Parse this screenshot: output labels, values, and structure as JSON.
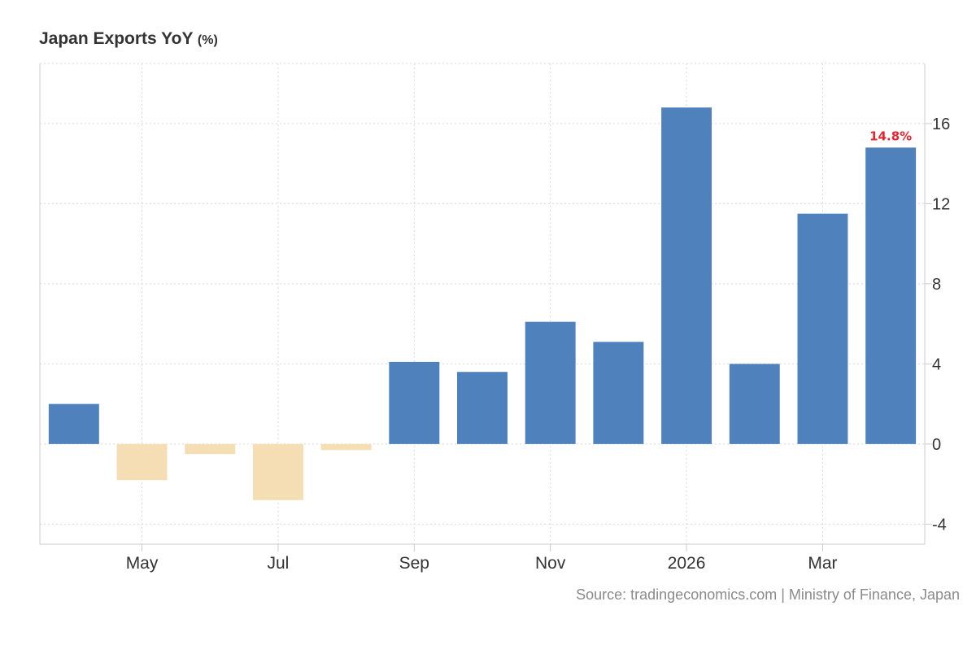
{
  "title": "Japan Exports YoY",
  "unit": "(%)",
  "source": "Source: tradingeconomics.com | Ministry of Finance, Japan",
  "chart_data": {
    "type": "bar",
    "title": "Japan Exports YoY (%)",
    "xlabel": "",
    "ylabel": "",
    "categories": [
      "2025-04",
      "2025-05",
      "2025-06",
      "2025-07",
      "2025-08",
      "2025-09",
      "2025-10",
      "2025-11",
      "2025-12",
      "2026-01",
      "2026-02",
      "2026-03",
      "2026-04"
    ],
    "values": [
      2.0,
      -1.8,
      -0.5,
      -2.8,
      -0.3,
      4.1,
      3.6,
      6.1,
      5.1,
      16.8,
      4.0,
      11.5,
      14.8
    ],
    "ylim": [
      -5,
      19
    ],
    "yticks": [
      -4,
      0,
      4,
      8,
      12,
      16
    ],
    "xtick_labels": [
      {
        "category": "2025-05",
        "label": "May"
      },
      {
        "category": "2025-07",
        "label": "Jul"
      },
      {
        "category": "2025-09",
        "label": "Sep"
      },
      {
        "category": "2025-11",
        "label": "Nov"
      },
      {
        "category": "2026-01",
        "label": "2026"
      },
      {
        "category": "2026-03",
        "label": "Mar"
      }
    ],
    "last_value_label": "14.8%",
    "grid": true,
    "colors": {
      "positive": "#4f81bd",
      "negative": "#f5deb3",
      "last_label": "#e8232d"
    }
  }
}
